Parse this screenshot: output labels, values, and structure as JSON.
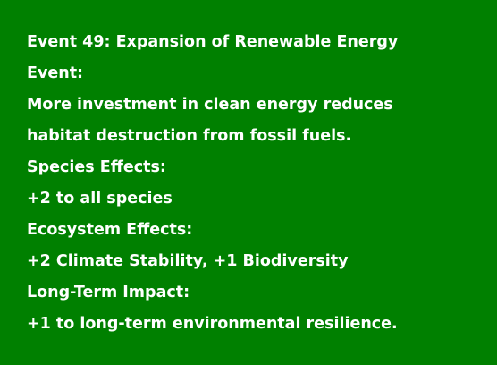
{
  "colors": {
    "background": "#008000",
    "text": "#ffffff"
  },
  "event": {
    "title": "Event 49: Expansion of Renewable Energy",
    "event_label": "Event:",
    "description_line_1": "More investment in clean energy reduces",
    "description_line_2": "habitat destruction from fossil fuels.",
    "species_effects_label": "Species Effects:",
    "species_effects": "+2 to all species",
    "ecosystem_effects_label": "Ecosystem Effects:",
    "ecosystem_effects": "+2 Climate Stability, +1 Biodiversity",
    "long_term_label": "Long-Term Impact:",
    "long_term_impact": "+1 to long-term environmental resilience."
  }
}
